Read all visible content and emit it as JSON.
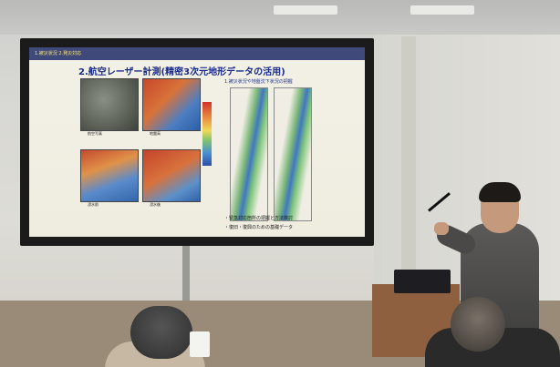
{
  "slide": {
    "header": "1.被災状況 2.発災対応",
    "title": "2.航空レーザー計測(精密3次元地形データの活用)",
    "right_panel_title": "1.被災状況や地盤沈下状況の把握",
    "captions": [
      "航空写真",
      "地盤高",
      "浸水前",
      "浸水後"
    ],
    "bullets": [
      "・緊急対応箇所の把握と方法検討",
      "・復旧・復興のための基礎データ"
    ]
  },
  "colors": {
    "frame": "#1b1b1b",
    "slide_background": "#f3f1e6",
    "title_blue": "#1a2c8a"
  }
}
